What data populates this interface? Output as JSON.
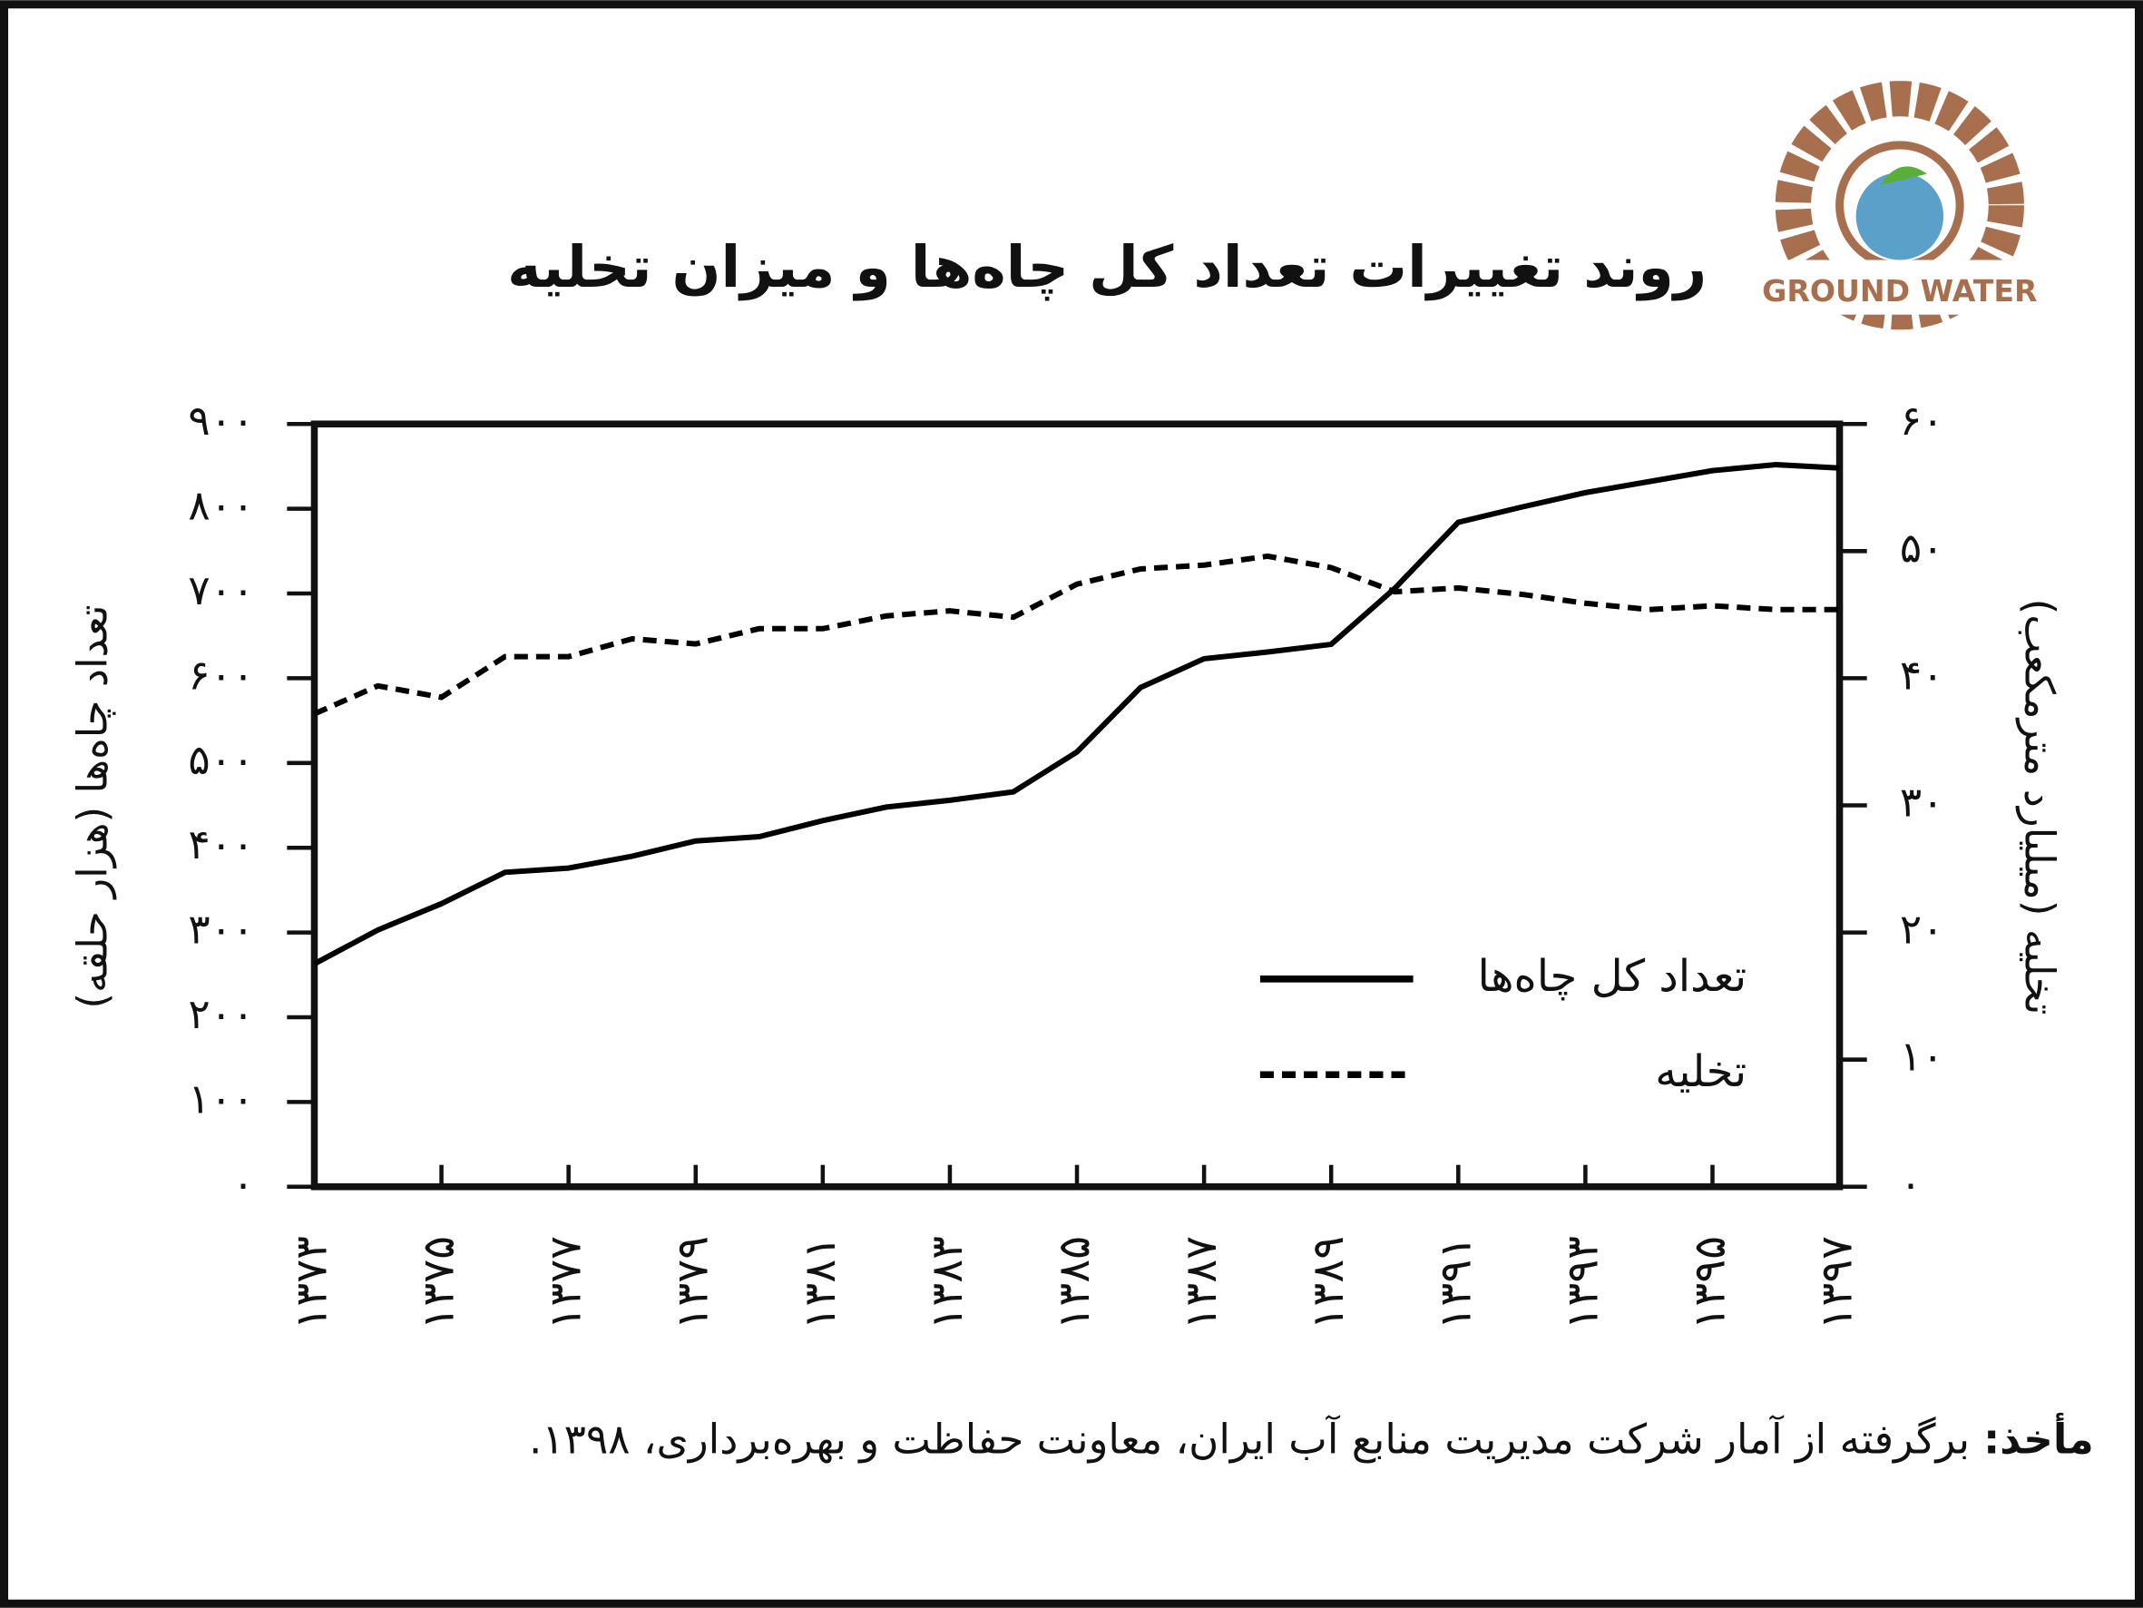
{
  "chart_data": {
    "type": "line",
    "title": "روند تغییرات تعداد کل چاه‌ها و میزان تخلیه",
    "y_label": "تعداد چاه‌ها (هزار حلقه)",
    "y2_label": "تخلیه (میلیارد مترمکعب)",
    "logo_text": "GROUND WATER",
    "source_label": "مأخذ:",
    "source": "برگرفته از آمار شرکت مدیریت منابع آب ایران، معاونت حفاظت و بهره‌برداری، ۱۳۹۸.",
    "x": [
      1373,
      1374,
      1375,
      1376,
      1377,
      1378,
      1379,
      1380,
      1381,
      1382,
      1383,
      1384,
      1385,
      1386,
      1387,
      1388,
      1389,
      1390,
      1391,
      1392,
      1393,
      1394,
      1395,
      1396,
      1397
    ],
    "xlim": [
      1373,
      1397
    ],
    "xticks": [
      {
        "value": 1373,
        "label": "۱۳۷۳"
      },
      {
        "value": 1375,
        "label": "۱۳۷۵"
      },
      {
        "value": 1377,
        "label": "۱۳۷۷"
      },
      {
        "value": 1379,
        "label": "۱۳۷۹"
      },
      {
        "value": 1381,
        "label": "۱۳۸۱"
      },
      {
        "value": 1383,
        "label": "۱۳۸۳"
      },
      {
        "value": 1385,
        "label": "۱۳۸۵"
      },
      {
        "value": 1387,
        "label": "۱۳۸۷"
      },
      {
        "value": 1389,
        "label": "۱۳۸۹"
      },
      {
        "value": 1391,
        "label": "۱۳۹۱"
      },
      {
        "value": 1393,
        "label": "۱۳۹۳"
      },
      {
        "value": 1395,
        "label": "۱۳۹۵"
      },
      {
        "value": 1397,
        "label": "۱۳۹۷"
      }
    ],
    "ylim": [
      0,
      900
    ],
    "yticks": [
      {
        "value": 0,
        "label": "۰"
      },
      {
        "value": 100,
        "label": "۱۰۰"
      },
      {
        "value": 200,
        "label": "۲۰۰"
      },
      {
        "value": 300,
        "label": "۳۰۰"
      },
      {
        "value": 400,
        "label": "۴۰۰"
      },
      {
        "value": 500,
        "label": "۵۰۰"
      },
      {
        "value": 600,
        "label": "۶۰۰"
      },
      {
        "value": 700,
        "label": "۷۰۰"
      },
      {
        "value": 800,
        "label": "۸۰۰"
      },
      {
        "value": 900,
        "label": "۹۰۰"
      }
    ],
    "y2lim": [
      0,
      60
    ],
    "y2ticks": [
      {
        "value": 0,
        "label": "۰"
      },
      {
        "value": 10,
        "label": "۱۰"
      },
      {
        "value": 20,
        "label": "۲۰"
      },
      {
        "value": 30,
        "label": "۳۰"
      },
      {
        "value": 40,
        "label": "۴۰"
      },
      {
        "value": 50,
        "label": "۵۰"
      },
      {
        "value": 60,
        "label": "۶۰"
      }
    ],
    "series": [
      {
        "name": "تعداد کل چاه‌ها",
        "color": "#000000",
        "dash": "solid",
        "values": [
          263,
          303,
          334,
          371,
          376,
          390,
          408,
          413,
          432,
          448,
          456,
          466,
          513,
          589,
          623,
          631,
          640,
          706,
          784,
          802,
          819,
          832,
          845,
          852,
          848
        ]
      },
      {
        "name": "تخلیه",
        "color": "#000000",
        "dash": "dashed",
        "axis": "y2",
        "values": [
          37.2,
          39.4,
          38.5,
          41.7,
          41.7,
          43.1,
          42.7,
          43.9,
          43.9,
          44.9,
          45.3,
          44.8,
          47.4,
          48.6,
          48.9,
          49.6,
          48.7,
          46.8,
          47.1,
          46.6,
          45.9,
          45.4,
          45.7,
          45.4,
          45.4
        ]
      }
    ]
  }
}
